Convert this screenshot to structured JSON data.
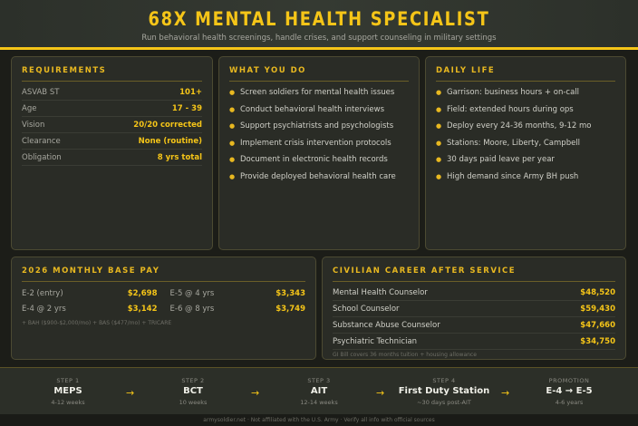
{
  "header": {
    "title": "68X MENTAL HEALTH SPECIALIST",
    "subtitle": "Run behavioral health screenings, handle crises, and support counseling in military settings"
  },
  "requirements": {
    "title": "REQUIREMENTS",
    "rows": [
      {
        "k": "ASVAB ST",
        "v": "101+"
      },
      {
        "k": "Age",
        "v": "17 - 39"
      },
      {
        "k": "Vision",
        "v": "20/20 corrected"
      },
      {
        "k": "Clearance",
        "v": "None (routine)"
      },
      {
        "k": "Obligation",
        "v": "8 yrs total"
      }
    ]
  },
  "duties": {
    "title": "WHAT YOU DO",
    "items": [
      "Screen soldiers for mental health issues",
      "Conduct behavioral health interviews",
      "Support psychiatrists and psychologists",
      "Implement crisis intervention protocols",
      "Document in electronic health records",
      "Provide deployed behavioral health care"
    ]
  },
  "daily": {
    "title": "DAILY LIFE",
    "items": [
      "Garrison: business hours + on-call",
      "Field: extended hours during ops",
      "Deploy every 24-36 months, 9-12 mo",
      "Stations: Moore, Liberty, Campbell",
      "30 days paid leave per year",
      "High demand since Army BH push"
    ]
  },
  "pay": {
    "title": "2026 MONTHLY BASE PAY",
    "rows": [
      {
        "k": "E-2 (entry)",
        "v": "$2,698"
      },
      {
        "k": "E-5 @ 4 yrs",
        "v": "$3,343"
      },
      {
        "k": "E-4 @ 2 yrs",
        "v": "$3,142"
      },
      {
        "k": "E-6 @ 8 yrs",
        "v": "$3,749"
      }
    ],
    "note": "+ BAH ($900-$2,000/mo) + BAS ($477/mo) + TRICARE"
  },
  "civilian": {
    "title": "CIVILIAN CAREER AFTER SERVICE",
    "rows": [
      {
        "k": "Mental Health Counselor",
        "v": "$48,520"
      },
      {
        "k": "School Counselor",
        "v": "$59,430"
      },
      {
        "k": "Substance Abuse Counselor",
        "v": "$47,660"
      },
      {
        "k": "Psychiatric Technician",
        "v": "$34,750"
      }
    ],
    "note": "GI Bill covers 36 months tuition + housing allowance"
  },
  "steps": [
    {
      "label": "STEP 1",
      "title": "MEPS",
      "sub": "4-12 weeks"
    },
    {
      "label": "STEP 2",
      "title": "BCT",
      "sub": "10 weeks"
    },
    {
      "label": "STEP 3",
      "title": "AIT",
      "sub": "12-14 weeks"
    },
    {
      "label": "STEP 4",
      "title": "First Duty Station",
      "sub": "~30 days post-AIT"
    },
    {
      "label": "PROMOTION",
      "title": "E-4 → E-5",
      "sub": "4-6 years"
    }
  ],
  "arrow": "→",
  "footer": "armysoldier.net · Not affiliated with the U.S. Army · Verify all info with official sources",
  "colors": {
    "accent": "#f5c518",
    "background": "#1c1d18",
    "card": "#2a2c26"
  }
}
